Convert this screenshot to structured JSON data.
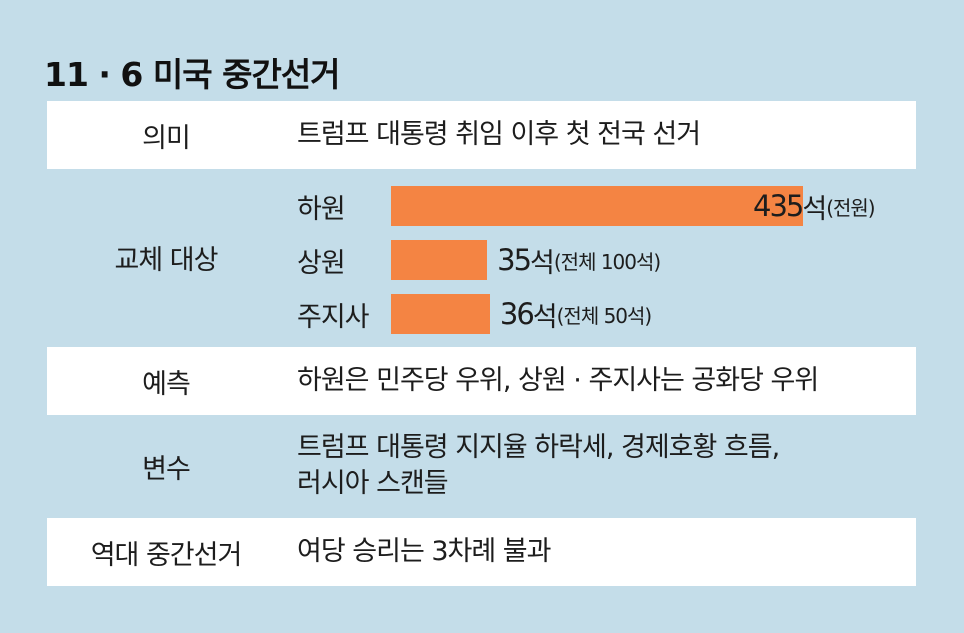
{
  "title": "11 · 6 미국 중간선거",
  "rows": {
    "meaning": {
      "label": "의미",
      "value": "트럼프 대통령 취임 이후 첫 전국 선거"
    },
    "targets": {
      "label": "교체 대상"
    },
    "forecast": {
      "label": "예측",
      "value": "하원은 민주당 우위, 상원 · 주지사는 공화당 우위"
    },
    "variables": {
      "label": "변수",
      "line1": "트럼프 대통령 지지율 하락세, 경제호황 흐름,",
      "line2": "러시아 스캔들"
    },
    "history": {
      "label": "역대 중간선거",
      "value": "여당 승리는 3차례 불과"
    }
  },
  "chart_data": {
    "type": "bar",
    "orientation": "horizontal",
    "colors": {
      "bar": "#f48443"
    },
    "categories": [
      "하원",
      "상원",
      "주지사"
    ],
    "values": [
      435,
      35,
      36
    ],
    "value_labels": [
      {
        "number": "435",
        "unit": "석",
        "note": "(전원)"
      },
      {
        "number": "35",
        "unit": "석",
        "note": "(전체 100석)"
      },
      {
        "number": "36",
        "unit": "석",
        "note": "(전체 50석)"
      }
    ],
    "title": "",
    "xlabel": "",
    "ylabel": "",
    "xlim": [
      0,
      435
    ],
    "grid": false,
    "legend": "none"
  }
}
